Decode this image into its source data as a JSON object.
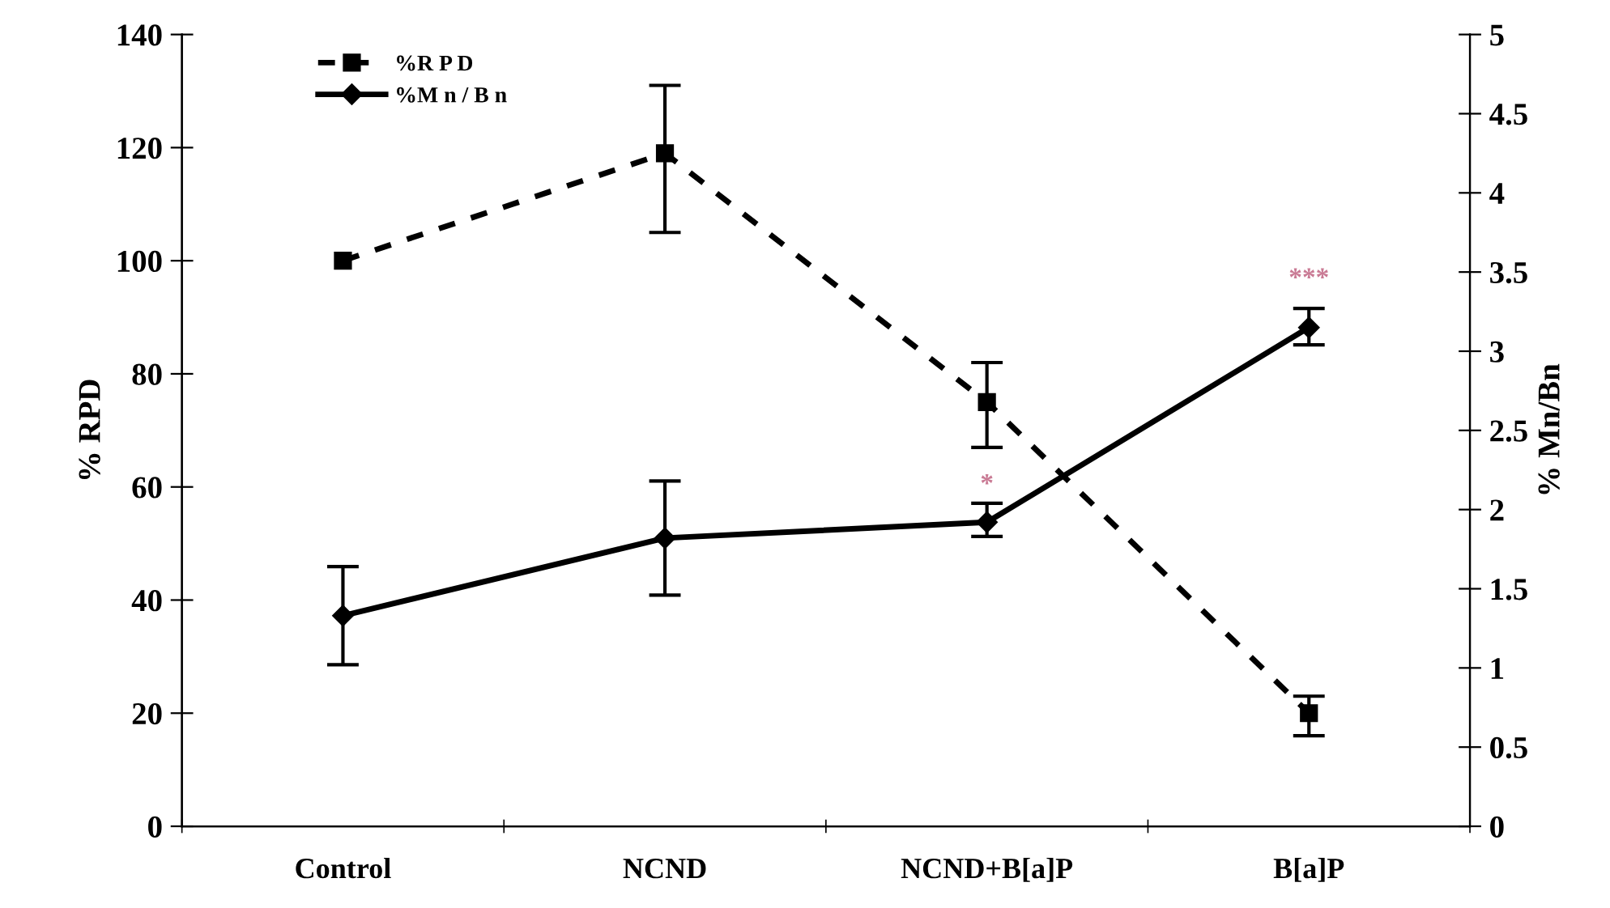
{
  "chart_data": {
    "type": "line",
    "categories": [
      "Control",
      "NCND",
      "NCND+B[a]P",
      "B[a]P"
    ],
    "ylabel": "% RPD",
    "y2label": "% Mn/Bn",
    "ylim": [
      0,
      140
    ],
    "yticks": [
      0,
      20,
      40,
      60,
      80,
      100,
      120,
      140
    ],
    "y2lim": [
      0,
      5
    ],
    "y2ticks": [
      0,
      0.5,
      1,
      1.5,
      2,
      2.5,
      3,
      3.5,
      4,
      4.5,
      5
    ],
    "series": [
      {
        "name": "%R P D",
        "color": "#000000",
        "marker": "square",
        "line_style": "dashed",
        "values": [
          100,
          119,
          75,
          20
        ],
        "errors": [
          null,
          [
            105,
            131
          ],
          [
            67,
            82
          ],
          [
            16,
            23
          ]
        ]
      },
      {
        "name": "%M n / B n",
        "color": "#000000",
        "marker": "diamond",
        "line_style": "solid",
        "axis": "y2",
        "values": [
          1.33,
          1.82,
          1.92,
          3.15
        ],
        "errors": [
          [
            1.02,
            1.64
          ],
          [
            1.46,
            2.18
          ],
          [
            1.83,
            2.04
          ],
          [
            3.04,
            3.27
          ]
        ]
      }
    ],
    "annotations": [
      "*",
      "***"
    ],
    "legend": "top left",
    "grid": false
  }
}
